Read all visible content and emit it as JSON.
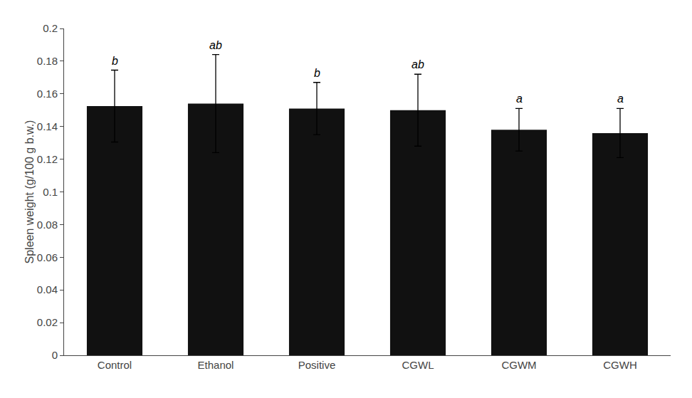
{
  "chart_data": {
    "type": "bar",
    "categories": [
      "Control",
      "Ethanol",
      "Positive",
      "CGWL",
      "CGWM",
      "CGWH"
    ],
    "values": [
      0.1525,
      0.154,
      0.151,
      0.15,
      0.138,
      0.136
    ],
    "errors": [
      0.022,
      0.03,
      0.016,
      0.022,
      0.013,
      0.015
    ],
    "annotations": [
      "b",
      "ab",
      "b",
      "ab",
      "a",
      "a"
    ],
    "color": "#111111",
    "ylabel": "Spleen weight (g/100 g b.w.)",
    "ylim": [
      0,
      0.2
    ],
    "yticks": [
      0,
      0.02,
      0.04,
      0.06,
      0.08,
      0.1,
      0.12,
      0.14,
      0.16,
      0.18,
      0.2
    ],
    "grid": false
  }
}
